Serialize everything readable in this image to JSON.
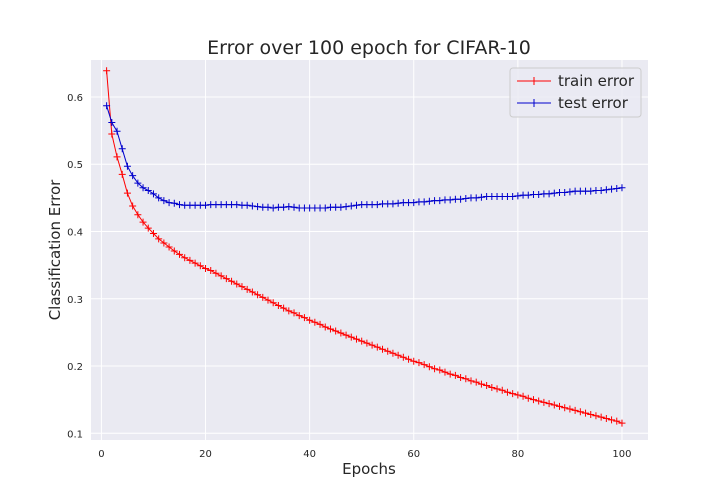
{
  "chart_data": {
    "type": "line",
    "title": "Error over 100 epoch for CIFAR-10",
    "xlabel": "Epochs",
    "ylabel": "Classification Error",
    "xlim": [
      -2,
      105
    ],
    "ylim": [
      0.09,
      0.655
    ],
    "xticks": [
      0,
      20,
      40,
      60,
      80,
      100
    ],
    "yticks": [
      0.1,
      0.2,
      0.3,
      0.4,
      0.5,
      0.6
    ],
    "grid": true,
    "legend": "top-right",
    "marker": "plus",
    "series": [
      {
        "name": "train error",
        "color": "#ff0000",
        "x": [
          1,
          2,
          3,
          4,
          5,
          6,
          7,
          8,
          9,
          10,
          11,
          12,
          13,
          14,
          15,
          16,
          17,
          18,
          19,
          20,
          21,
          22,
          23,
          24,
          25,
          26,
          27,
          28,
          29,
          30,
          31,
          32,
          33,
          34,
          35,
          36,
          37,
          38,
          39,
          40,
          41,
          42,
          43,
          44,
          45,
          46,
          47,
          48,
          49,
          50,
          51,
          52,
          53,
          54,
          55,
          56,
          57,
          58,
          59,
          60,
          61,
          62,
          63,
          64,
          65,
          66,
          67,
          68,
          69,
          70,
          71,
          72,
          73,
          74,
          75,
          76,
          77,
          78,
          79,
          80,
          81,
          82,
          83,
          84,
          85,
          86,
          87,
          88,
          89,
          90,
          91,
          92,
          93,
          94,
          95,
          96,
          97,
          98,
          99,
          100
        ],
        "values": [
          0.639,
          0.545,
          0.511,
          0.485,
          0.457,
          0.438,
          0.425,
          0.414,
          0.405,
          0.397,
          0.389,
          0.383,
          0.377,
          0.371,
          0.366,
          0.361,
          0.357,
          0.353,
          0.349,
          0.345,
          0.342,
          0.338,
          0.334,
          0.33,
          0.326,
          0.322,
          0.318,
          0.314,
          0.31,
          0.306,
          0.302,
          0.298,
          0.294,
          0.29,
          0.286,
          0.282,
          0.279,
          0.275,
          0.272,
          0.268,
          0.265,
          0.262,
          0.258,
          0.255,
          0.252,
          0.249,
          0.246,
          0.243,
          0.24,
          0.237,
          0.234,
          0.231,
          0.228,
          0.225,
          0.222,
          0.219,
          0.216,
          0.213,
          0.21,
          0.207,
          0.205,
          0.202,
          0.199,
          0.196,
          0.194,
          0.191,
          0.188,
          0.186,
          0.183,
          0.181,
          0.178,
          0.176,
          0.173,
          0.171,
          0.168,
          0.166,
          0.164,
          0.161,
          0.159,
          0.157,
          0.155,
          0.152,
          0.15,
          0.148,
          0.146,
          0.144,
          0.142,
          0.14,
          0.138,
          0.136,
          0.134,
          0.132,
          0.13,
          0.128,
          0.126,
          0.124,
          0.122,
          0.12,
          0.118,
          0.115
        ]
      },
      {
        "name": "test error",
        "color": "#0000cc",
        "x": [
          1,
          2,
          3,
          4,
          5,
          6,
          7,
          8,
          9,
          10,
          11,
          12,
          13,
          14,
          15,
          16,
          17,
          18,
          19,
          20,
          21,
          22,
          23,
          24,
          25,
          26,
          27,
          28,
          29,
          30,
          31,
          32,
          33,
          34,
          35,
          36,
          37,
          38,
          39,
          40,
          41,
          42,
          43,
          44,
          45,
          46,
          47,
          48,
          49,
          50,
          51,
          52,
          53,
          54,
          55,
          56,
          57,
          58,
          59,
          60,
          61,
          62,
          63,
          64,
          65,
          66,
          67,
          68,
          69,
          70,
          71,
          72,
          73,
          74,
          75,
          76,
          77,
          78,
          79,
          80,
          81,
          82,
          83,
          84,
          85,
          86,
          87,
          88,
          89,
          90,
          91,
          92,
          93,
          94,
          95,
          96,
          97,
          98,
          99,
          100
        ],
        "values": [
          0.587,
          0.562,
          0.549,
          0.523,
          0.497,
          0.483,
          0.472,
          0.465,
          0.461,
          0.456,
          0.45,
          0.446,
          0.443,
          0.442,
          0.44,
          0.439,
          0.439,
          0.439,
          0.439,
          0.439,
          0.44,
          0.44,
          0.44,
          0.44,
          0.44,
          0.44,
          0.439,
          0.439,
          0.438,
          0.437,
          0.436,
          0.436,
          0.435,
          0.436,
          0.436,
          0.437,
          0.436,
          0.435,
          0.435,
          0.435,
          0.435,
          0.435,
          0.435,
          0.436,
          0.436,
          0.436,
          0.437,
          0.438,
          0.439,
          0.44,
          0.44,
          0.44,
          0.44,
          0.441,
          0.441,
          0.441,
          0.442,
          0.443,
          0.443,
          0.443,
          0.444,
          0.444,
          0.445,
          0.446,
          0.446,
          0.447,
          0.447,
          0.448,
          0.448,
          0.449,
          0.45,
          0.45,
          0.451,
          0.452,
          0.452,
          0.452,
          0.452,
          0.452,
          0.452,
          0.453,
          0.454,
          0.454,
          0.455,
          0.455,
          0.456,
          0.456,
          0.457,
          0.458,
          0.458,
          0.459,
          0.46,
          0.46,
          0.46,
          0.46,
          0.461,
          0.461,
          0.462,
          0.463,
          0.464,
          0.465
        ]
      }
    ]
  }
}
